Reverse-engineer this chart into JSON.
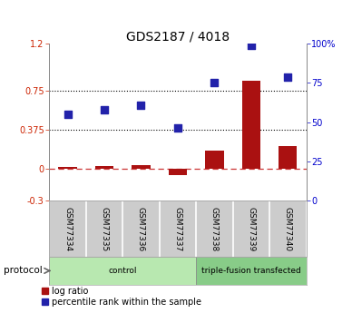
{
  "title": "GDS2187 / 4018",
  "samples": [
    "GSM77334",
    "GSM77335",
    "GSM77336",
    "GSM77337",
    "GSM77338",
    "GSM77339",
    "GSM77340"
  ],
  "log_ratio": [
    0.02,
    0.03,
    0.04,
    -0.06,
    0.18,
    0.85,
    0.22
  ],
  "percentile_rank_pct": [
    55,
    58,
    61,
    46,
    75,
    99,
    79
  ],
  "groups": [
    {
      "label": "control",
      "indices": [
        0,
        1,
        2,
        3
      ],
      "color": "#b8e8b0",
      "edge": "#888888"
    },
    {
      "label": "triple-fusion transfected",
      "indices": [
        4,
        5,
        6
      ],
      "color": "#88cc88",
      "edge": "#888888"
    }
  ],
  "ylim_left": [
    -0.3,
    1.2
  ],
  "ylim_right": [
    0,
    100
  ],
  "yticks_left": [
    -0.3,
    0.0,
    0.375,
    0.75,
    1.2
  ],
  "ytick_labels_left": [
    "-0.3",
    "0",
    "0.375",
    "0.75",
    "1.2"
  ],
  "yticks_right": [
    0,
    25,
    50,
    75,
    100
  ],
  "ytick_labels_right": [
    "0",
    "25",
    "50",
    "75",
    "100%"
  ],
  "hlines": [
    0.375,
    0.75
  ],
  "bar_color": "#aa1111",
  "dot_color": "#2222aa",
  "zero_line_color": "#cc3333",
  "label_bg_color": "#cccccc",
  "protocol_label": "protocol",
  "arrow_color": "#888888",
  "legend_items": [
    {
      "label": "log ratio",
      "color": "#aa1111"
    },
    {
      "label": "percentile rank within the sample",
      "color": "#2222aa"
    }
  ],
  "bar_width": 0.5,
  "xlim": [
    -0.5,
    6.5
  ]
}
